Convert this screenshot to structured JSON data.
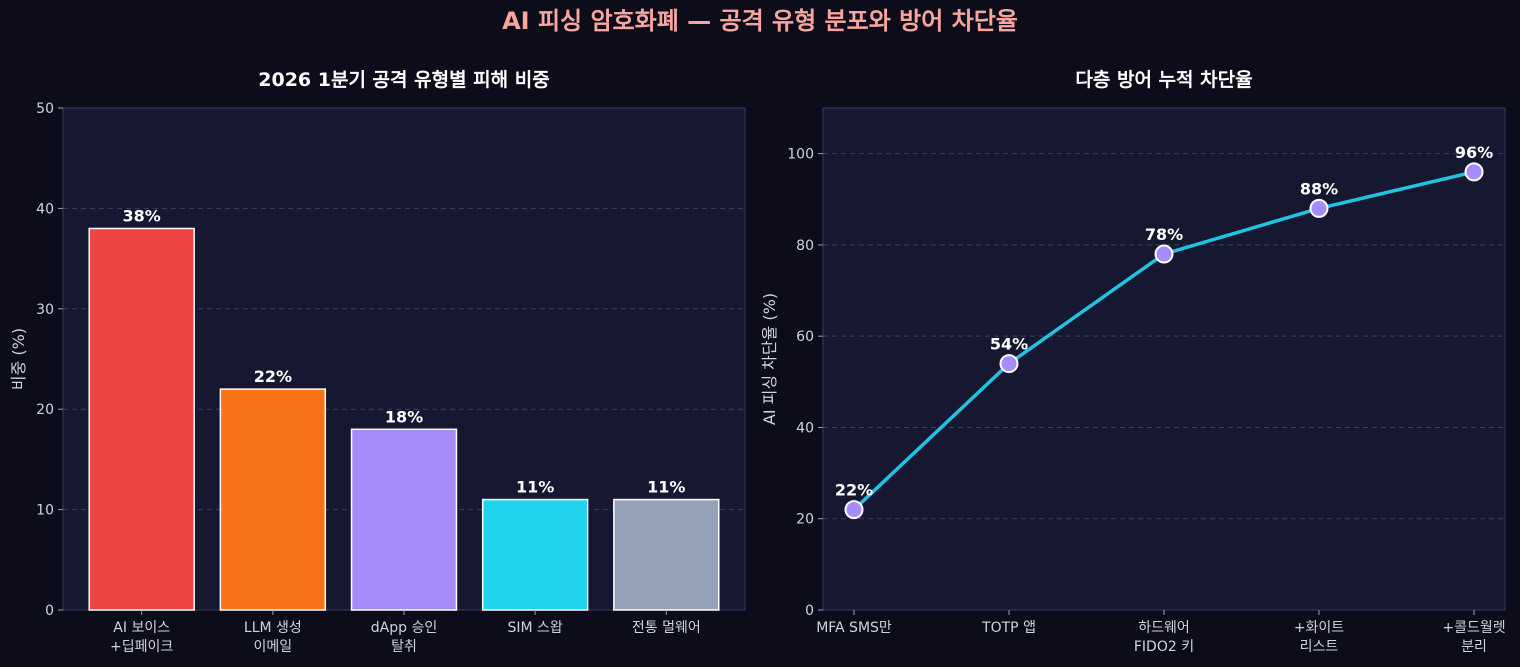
{
  "figure_title": "AI 피싱 암호화폐 — 공격 유형 분포와 방어 차단율",
  "colors": {
    "background": "#0c0c1a",
    "panel": "#161731",
    "title": "#f8a5a0",
    "line": "#22c3e0",
    "marker": "#a78bfa"
  },
  "chart_data": [
    {
      "type": "bar",
      "title": "2026 1분기 공격 유형별 피해 비중",
      "xlabel": "",
      "ylabel": "비중 (%)",
      "ylim": [
        0,
        50
      ],
      "yticks": [
        "0",
        "10",
        "20",
        "30",
        "40",
        "50"
      ],
      "categories": [
        [
          "AI 보이스",
          "+딥페이크"
        ],
        [
          "LLM 생성",
          "이메일"
        ],
        [
          "dApp 승인",
          "탈취"
        ],
        [
          "SIM 스왑"
        ],
        [
          "전통 멀웨어"
        ]
      ],
      "values": [
        38,
        22,
        18,
        11,
        11
      ],
      "labels": [
        "38%",
        "22%",
        "18%",
        "11%",
        "11%"
      ],
      "bar_colors": [
        "#ef4444",
        "#f97316",
        "#a78bfa",
        "#22d3ee",
        "#94a3b8"
      ],
      "grid": true
    },
    {
      "type": "line",
      "title": "다층 방어 누적 차단율",
      "xlabel": "",
      "ylabel": "AI 피싱 차단율 (%)",
      "ylim": [
        0,
        110
      ],
      "yticks": [
        "0",
        "20",
        "40",
        "60",
        "80",
        "100"
      ],
      "categories": [
        [
          "MFA SMS만"
        ],
        [
          "TOTP 앱"
        ],
        [
          "하드웨어",
          "FIDO2 키"
        ],
        [
          "+화이트",
          "리스트"
        ],
        [
          "+콜드월렛",
          "분리"
        ]
      ],
      "values": [
        22,
        54,
        78,
        88,
        96
      ],
      "labels": [
        "22%",
        "54%",
        "78%",
        "88%",
        "96%"
      ],
      "grid": true
    }
  ]
}
